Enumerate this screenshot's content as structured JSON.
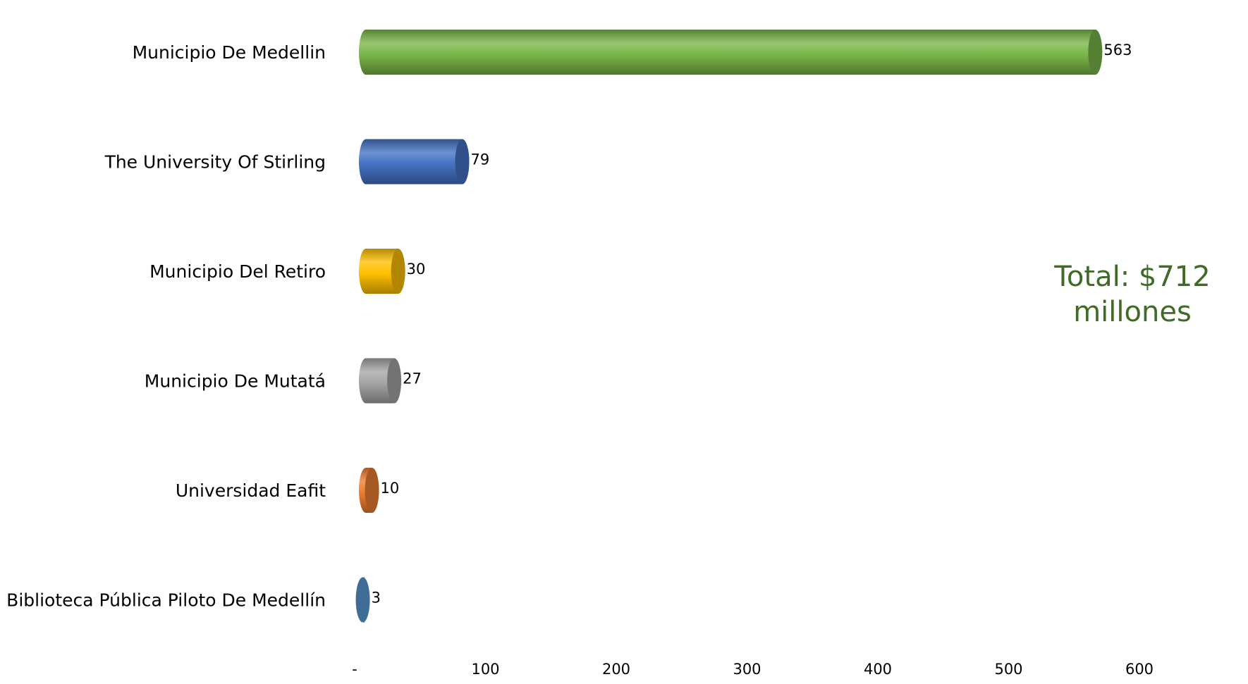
{
  "chart_data": {
    "type": "bar",
    "orientation": "horizontal",
    "categories": [
      "Municipio De Medellin",
      "The University Of Stirling",
      "Municipio Del Retiro",
      "Municipio De Mutatá",
      "Universidad Eafit",
      "Biblioteca Pública Piloto De Medellín"
    ],
    "values": [
      563,
      79,
      30,
      27,
      10,
      3
    ],
    "data_labels": [
      "563",
      "79",
      "30",
      "27",
      "10",
      "3"
    ],
    "colors": [
      "#7ab648",
      "#4472c4",
      "#ffc000",
      "#a5a5a5",
      "#ed7d31",
      "#5b9bd5"
    ],
    "xlim": [
      0,
      600
    ],
    "x_ticks": [
      0,
      100,
      200,
      300,
      400,
      500,
      600
    ],
    "x_tick_labels": [
      "-",
      "100",
      "200",
      "300",
      "400",
      "500",
      "600"
    ],
    "grid": false,
    "legend": "none"
  },
  "annotation": {
    "line1": "Total: $712",
    "line2": "millones"
  }
}
